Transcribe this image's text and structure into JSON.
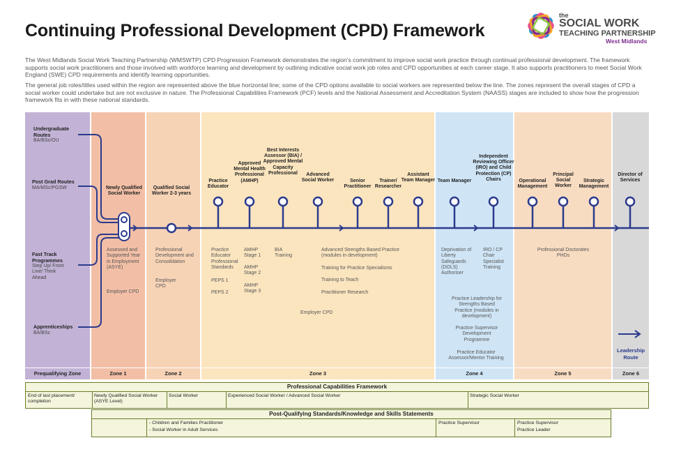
{
  "title": "Continuing Professional Development (CPD) Framework",
  "logo": {
    "small": "the",
    "big": "SOCIAL WORK",
    "mid": "TEACHING PARTNERSHIP",
    "region": "West Midlands"
  },
  "intro": {
    "p1": "The West Midlands Social Work Teaching Partnership (WMSWTP) CPD Progression Framework demonstrates the region's commitment to improve social work practice through continual professional development. The framework supports social work practitioners and those involved with workforce learning and development by outlining indicative social work job roles and CPD opportunities at each career stage. It also supports practitioners to meet Social Work England (SWE) CPD requirements and identify learning opportunities.",
    "p2": "The general job roles/titles used within the region are represented above the blue horizontal line; some of the CPD options available to social workers are represented below the line. The zones represent the overall stages of CPD a social worker could undertake but are not  exclusive in nature. The Professional Capabilities Framework (PCF) levels and the National Assessment and Accreditation System (NAASS) stages are included to show how the progression framework fits in with these national standards."
  },
  "colors": {
    "prequal": "#c2b3d6",
    "zone1": "#f2bfa6",
    "zone2": "#f7d3b6",
    "zone3": "#fbe5bf",
    "zone4": "#cfe5f6",
    "zone5": "#f8dcc2",
    "zone6": "#d8d8d8",
    "line": "#2b3a8c",
    "table": "#f4f5dc"
  },
  "zones": {
    "prequal": "Prequalifying Zone",
    "z1": "Zone 1",
    "z2": "Zone 2",
    "z3": "Zone 3",
    "z4": "Zone 4",
    "z5": "Zone 5",
    "z6": "Zone 6"
  },
  "entry_routes": {
    "ug_title": "Undergraduate Routes",
    "ug_sub": "BA/BSc/OU",
    "pg_title": "Post Grad Routes",
    "pg_sub": "MA/MSc/PGSW",
    "ft_title": "Fast Track Programmes",
    "ft_sub": "Step Up/ Front Line/ Think Ahead",
    "app_title": "Apprenticeships",
    "app_sub": "BA/BSc"
  },
  "roles": {
    "nqsw": "Newly Qualified Social Worker",
    "qsw": "Qualified Social Worker 2-3 years",
    "practice_educator": "Practice Educator",
    "amhp": "Approved Mental Health Professional (AMHP)",
    "bia": "Best Interests Assessor (BIA) / Approved Mental Capacity Professional",
    "asw": "Advanced Social Worker",
    "senior": "Senior Practitioner",
    "trainer": "Trainer/ Researcher",
    "atm": "Assistant Team Manager",
    "tm": "Team Manager",
    "iro": "Independent Reviewing Officer (IRO) and Child Protection (CP) Chairs",
    "opm": "Operational Management",
    "psw": "Principal Social Worker",
    "stm": "Strategic Management",
    "dos": "Director of Services"
  },
  "cpd": {
    "z1_a": "Assessed and Supported Year in Employment (ASYE)",
    "z1_b": "Employer CPD",
    "z2_a": "Professional Development and Consolidation",
    "z2_b": "Employer CPD",
    "pe_a": "Practice Educator Professional Standards",
    "pe_b": "PEPS 1",
    "pe_c": "PEPS 2",
    "amhp_a": "AMHP Stage 1",
    "amhp_b": "AMHP Stage 2",
    "amhp_c": "AMHP Stage 3",
    "bia_a": "BIA Training",
    "asb": "Advanced Strengths Based Practice (modules in development)",
    "tps": "Training for Practice Specialisms",
    "ttt": "Training to Teach",
    "pr": "Practitioner Research",
    "z3_emp": "Employer CPD",
    "dols": "Deprivation of Liberty Safeguards (DOLS) Authoriser",
    "iro_t": "IRO / CP Chair Specialist Training",
    "plsb": "Practice Leadership for Strengths Based Practice (modules in development)",
    "psdp": "Practice Supervisor Development Programme",
    "pea": "Practice Educator Assessor/Mentor Training",
    "phd": "Professional Doctorates PHDs",
    "leadership": "Leadership Route"
  },
  "pcf": {
    "title": "Professional Capabilities Framework",
    "c1": "End of last placement/ completion",
    "c2": "Newly Qualified Social Worker (ASYE Level)",
    "c3": "Social Worker",
    "c4": "Experienced Social Worker / Advanced Social Worker",
    "c5": "Strategic Social Worker"
  },
  "pqs": {
    "title": "Post-Qualifying Standards/Knowledge and Skills Statements",
    "c1a": "- Children and Families Practitioner",
    "c1b": "- Social Worker in Adult Services",
    "c2": "Practice Supervisor",
    "c3a": "Practice Supervisor",
    "c3b": "Practice Leader"
  }
}
